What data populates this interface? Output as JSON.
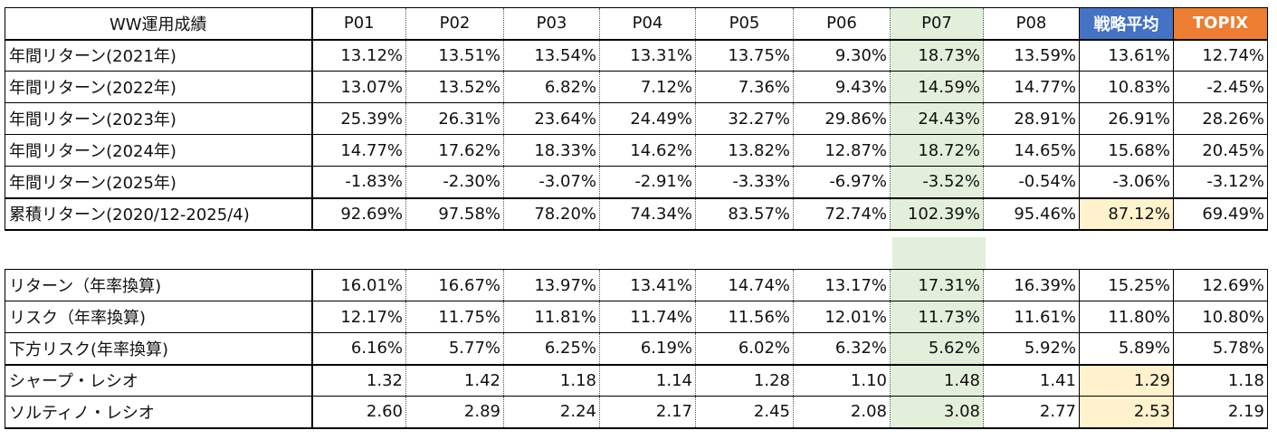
{
  "table1": {
    "title": "WW運用成績",
    "columns": [
      "P01",
      "P02",
      "P03",
      "P04",
      "P05",
      "P06",
      "P07",
      "P08",
      "戦略平均",
      "TOPIX"
    ],
    "rows": [
      {
        "label": "年間リターン(2021年)",
        "values": [
          "13.12%",
          "13.51%",
          "13.54%",
          "13.31%",
          "13.75%",
          "9.30%",
          "18.73%",
          "13.59%",
          "13.61%",
          "12.74%"
        ]
      },
      {
        "label": "年間リターン(2022年)",
        "values": [
          "13.07%",
          "13.52%",
          "6.82%",
          "7.12%",
          "7.36%",
          "9.43%",
          "14.59%",
          "14.77%",
          "10.83%",
          "-2.45%"
        ]
      },
      {
        "label": "年間リターン(2023年)",
        "values": [
          "25.39%",
          "26.31%",
          "23.64%",
          "24.49%",
          "32.27%",
          "29.86%",
          "24.43%",
          "28.91%",
          "26.91%",
          "28.26%"
        ]
      },
      {
        "label": "年間リターン(2024年)",
        "values": [
          "14.77%",
          "17.62%",
          "18.33%",
          "14.62%",
          "13.82%",
          "12.87%",
          "18.72%",
          "14.65%",
          "15.68%",
          "20.45%"
        ]
      },
      {
        "label": "年間リターン(2025年)",
        "values": [
          "-1.83%",
          "-2.30%",
          "-3.07%",
          "-2.91%",
          "-3.33%",
          "-6.97%",
          "-3.52%",
          "-0.54%",
          "-3.06%",
          "-3.12%"
        ]
      },
      {
        "label": "累積リターン(2020/12-2025/4)",
        "values": [
          "92.69%",
          "97.58%",
          "78.20%",
          "74.34%",
          "83.57%",
          "72.74%",
          "102.39%",
          "95.46%",
          "87.12%",
          "69.49%"
        ]
      }
    ]
  },
  "table2": {
    "rows": [
      {
        "label": "リターン（年率換算)",
        "values": [
          "16.01%",
          "16.67%",
          "13.97%",
          "13.41%",
          "14.74%",
          "13.17%",
          "17.31%",
          "16.39%",
          "15.25%",
          "12.69%"
        ]
      },
      {
        "label": "リスク（年率換算)",
        "values": [
          "12.17%",
          "11.75%",
          "11.81%",
          "11.74%",
          "11.56%",
          "12.01%",
          "11.73%",
          "11.61%",
          "11.80%",
          "10.80%"
        ]
      },
      {
        "label": "下方リスク(年率換算)",
        "values": [
          "6.16%",
          "5.77%",
          "6.25%",
          "6.19%",
          "6.02%",
          "6.32%",
          "5.62%",
          "5.92%",
          "5.89%",
          "5.78%"
        ]
      },
      {
        "label": "シャープ・レシオ",
        "values": [
          "1.32",
          "1.42",
          "1.18",
          "1.14",
          "1.28",
          "1.10",
          "1.48",
          "1.41",
          "1.29",
          "1.18"
        ]
      },
      {
        "label": "ソルティノ・レシオ",
        "values": [
          "2.60",
          "2.89",
          "2.24",
          "2.17",
          "2.45",
          "2.08",
          "3.08",
          "2.77",
          "2.53",
          "2.19"
        ]
      }
    ]
  },
  "colors": {
    "p07_highlight": "#e2efda",
    "average_highlight": "#fff2cc",
    "average_header": "#4472c4",
    "topix_header": "#ed7d31"
  }
}
